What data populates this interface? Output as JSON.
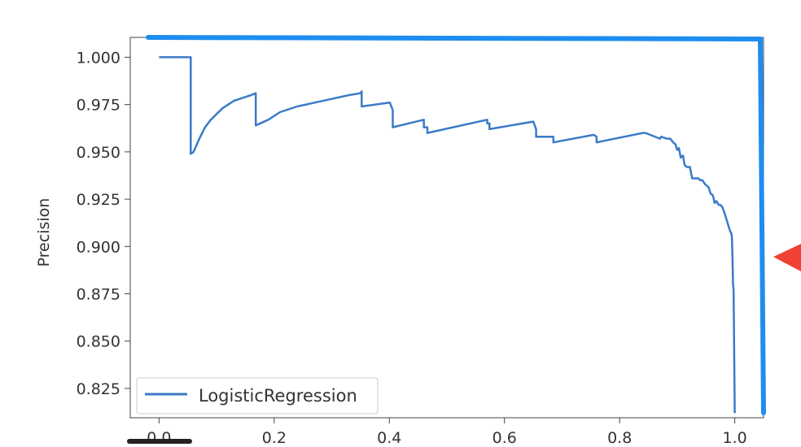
{
  "chart_data": {
    "type": "line",
    "title": "",
    "xlabel": "",
    "ylabel": "Precision",
    "xlim": [
      -0.05,
      1.05
    ],
    "ylim": [
      0.8095,
      1.0105
    ],
    "x_ticks": [
      0.0,
      0.2,
      0.4,
      0.6,
      0.8,
      1.0
    ],
    "x_tick_labels": [
      "0.0",
      "0.2",
      "0.4",
      "0.6",
      "0.8",
      "1.0"
    ],
    "y_ticks": [
      0.825,
      0.85,
      0.875,
      0.9,
      0.925,
      0.95,
      0.975,
      1.0
    ],
    "y_tick_labels": [
      "0.825",
      "0.850",
      "0.875",
      "0.900",
      "0.925",
      "0.950",
      "0.975",
      "1.000"
    ],
    "grid": false,
    "legend_position": "lower-left",
    "series": [
      {
        "name": "LogisticRegression",
        "color": "#3a7bc8",
        "x": [
          0.0,
          0.055,
          0.055,
          0.06,
          0.07,
          0.08,
          0.09,
          0.1,
          0.11,
          0.12,
          0.13,
          0.14,
          0.15,
          0.16,
          0.168,
          0.168,
          0.19,
          0.21,
          0.24,
          0.27,
          0.3,
          0.33,
          0.35,
          0.352,
          0.352,
          0.4,
          0.401,
          0.406,
          0.406,
          0.46,
          0.46,
          0.466,
          0.466,
          0.57,
          0.57,
          0.574,
          0.574,
          0.65,
          0.65,
          0.655,
          0.655,
          0.68,
          0.68,
          0.685,
          0.685,
          0.755,
          0.755,
          0.76,
          0.76,
          0.84,
          0.845,
          0.87,
          0.872,
          0.882,
          0.888,
          0.893,
          0.897,
          0.9,
          0.903,
          0.906,
          0.91,
          0.913,
          0.917,
          0.922,
          0.926,
          0.93,
          0.933,
          0.937,
          0.94,
          0.944,
          0.948,
          0.952,
          0.955,
          0.958,
          0.962,
          0.965,
          0.968,
          0.972,
          0.975,
          0.978,
          0.982,
          0.985,
          0.988,
          0.99,
          0.992,
          0.994,
          0.995,
          0.996,
          0.997,
          0.998,
          0.998,
          1.0
        ],
        "y": [
          1.0,
          1.0,
          0.949,
          0.95,
          0.957,
          0.963,
          0.967,
          0.97,
          0.973,
          0.975,
          0.977,
          0.978,
          0.979,
          0.98,
          0.981,
          0.964,
          0.967,
          0.971,
          0.974,
          0.976,
          0.978,
          0.98,
          0.981,
          0.982,
          0.974,
          0.976,
          0.976,
          0.972,
          0.963,
          0.967,
          0.963,
          0.963,
          0.96,
          0.967,
          0.965,
          0.965,
          0.962,
          0.966,
          0.966,
          0.962,
          0.958,
          0.958,
          0.958,
          0.958,
          0.955,
          0.959,
          0.959,
          0.958,
          0.955,
          0.96,
          0.96,
          0.957,
          0.958,
          0.957,
          0.957,
          0.955,
          0.954,
          0.951,
          0.952,
          0.947,
          0.948,
          0.943,
          0.942,
          0.942,
          0.936,
          0.936,
          0.936,
          0.936,
          0.935,
          0.935,
          0.933,
          0.932,
          0.931,
          0.928,
          0.927,
          0.923,
          0.924,
          0.922,
          0.922,
          0.921,
          0.918,
          0.915,
          0.912,
          0.91,
          0.908,
          0.907,
          0.905,
          0.895,
          0.88,
          0.877,
          0.877,
          0.812
        ]
      }
    ]
  }
}
